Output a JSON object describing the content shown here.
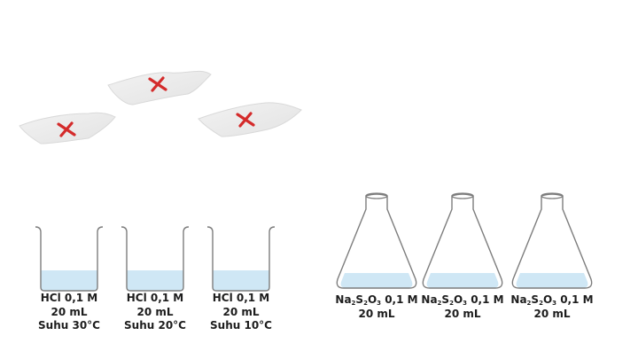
{
  "colors": {
    "paper": "#ececec",
    "cross_mark": "#d42b2b",
    "liquid": "#cfe7f5",
    "glass_outline": "#7d7d7d"
  },
  "papers": [
    {
      "mark": "red-cross"
    },
    {
      "mark": "red-cross"
    },
    {
      "mark": "red-cross"
    }
  ],
  "beakers": [
    {
      "line1": "HCl 0,1 M",
      "line2": "20 mL",
      "line3": "Suhu 30°C"
    },
    {
      "line1": "HCl 0,1 M",
      "line2": "20 mL",
      "line3": "Suhu 20°C"
    },
    {
      "line1": "HCl 0,1 M",
      "line2": "20 mL",
      "line3": "Suhu 10°C"
    }
  ],
  "flasks": [
    {
      "formula": {
        "na": "Na",
        "na_sub": "2",
        "s": "S",
        "s_sub": "2",
        "o": "O",
        "o_sub": "3",
        "conc": " 0,1 M"
      },
      "volume": "20 mL"
    },
    {
      "formula": {
        "na": "Na",
        "na_sub": "2",
        "s": "S",
        "s_sub": "2",
        "o": "O",
        "o_sub": "3",
        "conc": " 0,1 M"
      },
      "volume": "20 mL"
    },
    {
      "formula": {
        "na": "Na",
        "na_sub": "2",
        "s": "S",
        "s_sub": "2",
        "o": "O",
        "o_sub": "3",
        "conc": " 0,1 M"
      },
      "volume": "20 mL"
    }
  ]
}
